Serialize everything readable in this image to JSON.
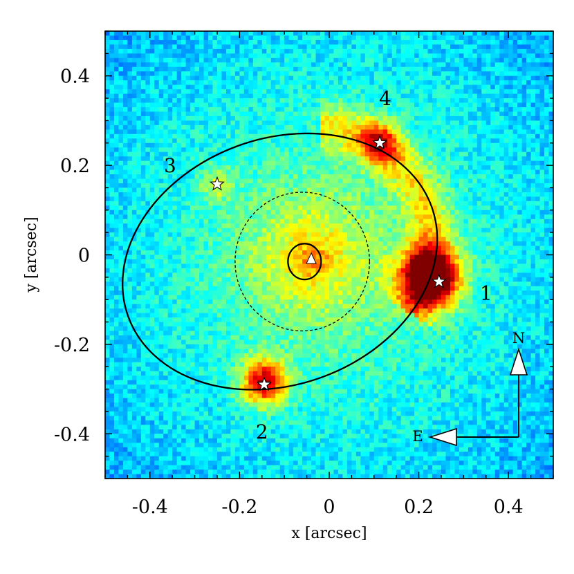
{
  "chart_data": {
    "type": "heatmap",
    "title": "",
    "xlabel": "x [arcsec]",
    "ylabel": "y [arcsec]",
    "xlim": [
      -0.5,
      0.5
    ],
    "ylim": [
      -0.5,
      0.5
    ],
    "xticks": [
      -0.4,
      -0.2,
      0,
      0.2,
      0.4
    ],
    "xtick_labels": [
      "-0.4",
      "-0.2",
      "0",
      "0.2",
      "0.4"
    ],
    "yticks": [
      0.4,
      0.2,
      0,
      -0.2,
      -0.4
    ],
    "ytick_labels": [
      "0.4",
      "0.2",
      "0",
      "-0.2",
      "-0.4"
    ],
    "colormap": "jet",
    "grid": false,
    "images": [
      {
        "label": "1",
        "x": 0.245,
        "y": -0.06,
        "label_x": 0.35,
        "label_y": -0.085
      },
      {
        "label": "2",
        "x": -0.145,
        "y": -0.29,
        "label_x": -0.15,
        "label_y": -0.395
      },
      {
        "label": "3",
        "x": -0.25,
        "y": 0.158,
        "label_x": -0.355,
        "label_y": 0.2
      },
      {
        "label": "4",
        "x": 0.113,
        "y": 0.25,
        "label_x": 0.125,
        "label_y": 0.35
      }
    ],
    "galaxy_center": {
      "x": -0.04,
      "y": -0.01
    },
    "ellipses": [
      {
        "style": "solid",
        "cx": -0.11,
        "cy": -0.015,
        "rx": 0.36,
        "ry": 0.275,
        "angle_deg": -20
      },
      {
        "style": "dashed",
        "cx": -0.06,
        "cy": -0.015,
        "rx": 0.15,
        "ry": 0.155,
        "angle_deg": 0
      },
      {
        "style": "solid",
        "cx": -0.055,
        "cy": -0.015,
        "rx": 0.037,
        "ry": 0.04,
        "angle_deg": 0
      }
    ],
    "compass": {
      "north_label": "N",
      "east_label": "E"
    }
  }
}
